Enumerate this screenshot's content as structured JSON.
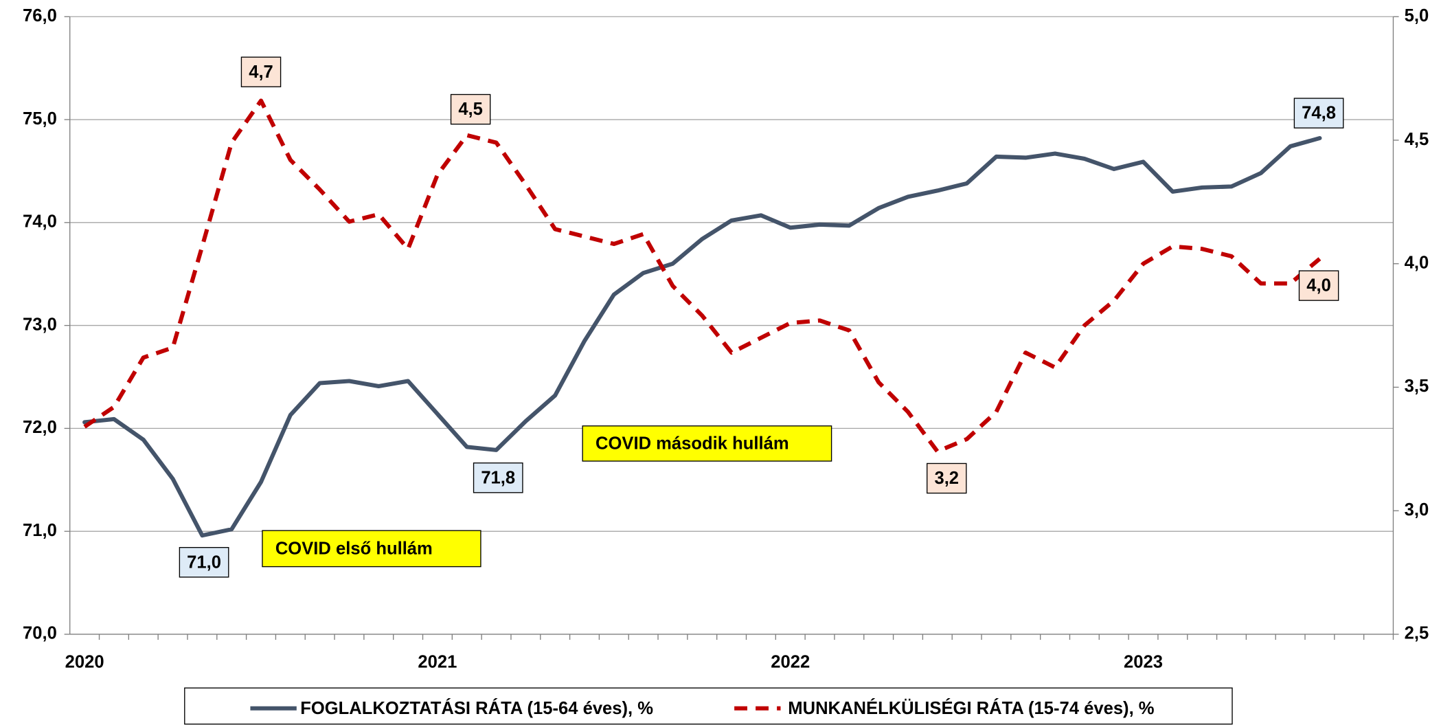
{
  "chart_data": {
    "type": "line",
    "categories": [
      "2020",
      null,
      null,
      null,
      null,
      null,
      null,
      null,
      null,
      null,
      null,
      null,
      "2021",
      null,
      null,
      null,
      null,
      null,
      null,
      null,
      null,
      null,
      null,
      null,
      "2022",
      null,
      null,
      null,
      null,
      null,
      null,
      null,
      null,
      null,
      null,
      null,
      "2023",
      null,
      null,
      null,
      null,
      null,
      null,
      null,
      null
    ],
    "series": [
      {
        "name": "FOGLALKOZTATÁSI RÁTA (15-64 éves), %",
        "color": "#44546a",
        "axis": "y",
        "values": [
          72.06,
          72.09,
          71.89,
          71.51,
          70.96,
          71.02,
          71.48,
          72.13,
          72.44,
          72.46,
          72.41,
          72.46,
          72.14,
          71.82,
          71.79,
          72.07,
          72.32,
          72.85,
          73.3,
          73.51,
          73.6,
          73.84,
          74.02,
          74.07,
          73.95,
          73.98,
          73.97,
          74.14,
          74.25,
          74.31,
          74.38,
          74.64,
          74.63,
          74.67,
          74.62,
          74.52,
          74.59,
          74.3,
          74.34,
          74.35,
          74.48,
          74.74,
          74.82,
          null,
          null
        ],
        "value_labels": [
          null,
          null,
          null,
          null,
          "71,0",
          null,
          null,
          null,
          null,
          null,
          null,
          null,
          null,
          null,
          "71,8",
          null,
          null,
          null,
          null,
          null,
          null,
          null,
          null,
          null,
          null,
          null,
          null,
          null,
          null,
          null,
          null,
          null,
          null,
          null,
          null,
          null,
          null,
          null,
          null,
          null,
          null,
          null,
          "74,8",
          null,
          null
        ]
      },
      {
        "name": "MUNKANÉLKÜLISÉGI RÁTA (15-74 éves), %",
        "color": "#c00000",
        "axis": "y2",
        "dashed": true,
        "values": [
          3.34,
          3.42,
          3.62,
          3.66,
          4.07,
          4.49,
          4.66,
          4.42,
          4.3,
          4.17,
          4.2,
          4.06,
          4.36,
          4.52,
          4.49,
          4.32,
          4.14,
          4.11,
          4.08,
          4.12,
          3.91,
          3.79,
          3.64,
          3.7,
          3.76,
          3.77,
          3.73,
          3.52,
          3.4,
          3.24,
          3.29,
          3.4,
          3.64,
          3.58,
          3.75,
          3.85,
          4.0,
          4.07,
          4.06,
          4.03,
          3.92,
          3.92,
          4.02,
          null,
          null
        ],
        "value_labels": [
          null,
          null,
          null,
          null,
          null,
          null,
          "4,7",
          null,
          null,
          null,
          null,
          null,
          null,
          "4,5",
          null,
          null,
          null,
          null,
          null,
          null,
          null,
          null,
          null,
          null,
          null,
          null,
          null,
          null,
          null,
          "3,2",
          null,
          null,
          null,
          null,
          null,
          null,
          null,
          null,
          null,
          null,
          null,
          null,
          "4,0",
          null,
          null
        ]
      }
    ],
    "ylim": [
      70,
      76
    ],
    "yticks": [
      {
        "value": 70,
        "label": "70,0"
      },
      {
        "value": 71,
        "label": "71,0"
      },
      {
        "value": 72,
        "label": "72,0"
      },
      {
        "value": 73,
        "label": "73,0"
      },
      {
        "value": 74,
        "label": "74,0"
      },
      {
        "value": 75,
        "label": "75,0"
      },
      {
        "value": 76,
        "label": "76,0"
      }
    ],
    "y2lim": [
      2.5,
      5.0
    ],
    "y2ticks": [
      {
        "value": 2.5,
        "label": "2,5"
      },
      {
        "value": 3.0,
        "label": "3,0"
      },
      {
        "value": 3.5,
        "label": "3,5"
      },
      {
        "value": 4.0,
        "label": "4,0"
      },
      {
        "value": 4.5,
        "label": "4,5"
      },
      {
        "value": 5.0,
        "label": "5,0"
      }
    ],
    "grid": true,
    "legend": "bottom",
    "annotations": [
      {
        "text": "COVID első hullám"
      },
      {
        "text": "COVID második hullám"
      }
    ]
  }
}
